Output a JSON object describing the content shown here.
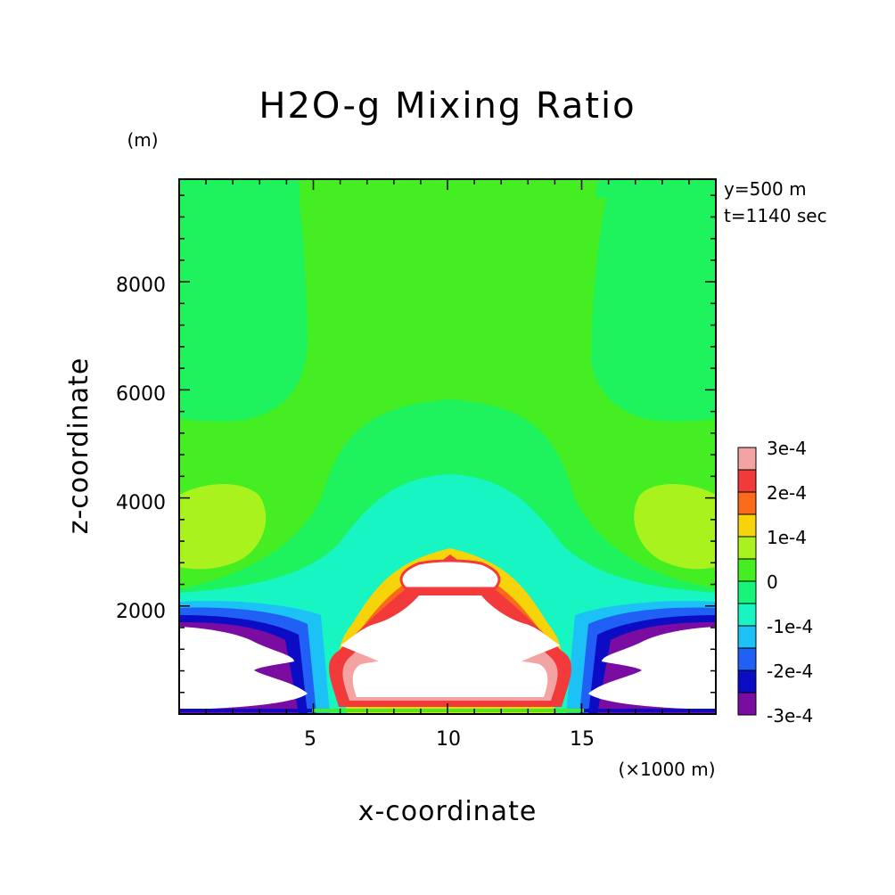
{
  "chart_data": {
    "type": "contour",
    "title": "H2O-g Mixing Ratio",
    "xlabel": "x-coordinate",
    "ylabel": "z-coordinate",
    "x_unit": "(×1000 m)",
    "y_unit": "(m)",
    "annotations": [
      "y=500 m",
      "t=1140 sec"
    ],
    "xlim": [
      0,
      20
    ],
    "ylim": [
      0,
      9900
    ],
    "x_ticks": [
      "5",
      "10",
      "15"
    ],
    "y_ticks": [
      "2000",
      "4000",
      "6000",
      "8000"
    ],
    "colorbar": {
      "levels": [
        "3e-4",
        "2e-4",
        "1e-4",
        "0",
        "-1e-4",
        "-2e-4",
        "-3e-4"
      ],
      "bands": [
        {
          "label": "3e-4",
          "color": "#f4a3a3"
        },
        {
          "label": "",
          "color": "#f33a3a"
        },
        {
          "label": "2e-4",
          "color": "#fb6a1a"
        },
        {
          "label": "",
          "color": "#f7d40a"
        },
        {
          "label": "1e-4",
          "color": "#aaf21e"
        },
        {
          "label": "",
          "color": "#44ee22"
        },
        {
          "label": "0",
          "color": "#16f57a"
        },
        {
          "label": "",
          "color": "#16f5c2"
        },
        {
          "label": "-1e-4",
          "color": "#1cc2f5"
        },
        {
          "label": "",
          "color": "#2060f5"
        },
        {
          "label": "-2e-4",
          "color": "#0c0cc5"
        },
        {
          "label": "-3e-4",
          "color": "#7a0ca2"
        }
      ]
    },
    "colors": {
      "background_field": "#44ee22",
      "upper_field": "#1ef25c",
      "positive_patch": "#aaf21e",
      "cool_cyan": "#16f5c2",
      "sky": "#1cc2f5",
      "blue": "#2060f5",
      "navy": "#0c0cc5",
      "purple": "#7a0ca2",
      "red": "#f33a3a",
      "pink": "#f4a3a3",
      "orange": "#fb6a1a",
      "yellow": "#f7d40a",
      "cloud_void": "#ffffff"
    }
  }
}
